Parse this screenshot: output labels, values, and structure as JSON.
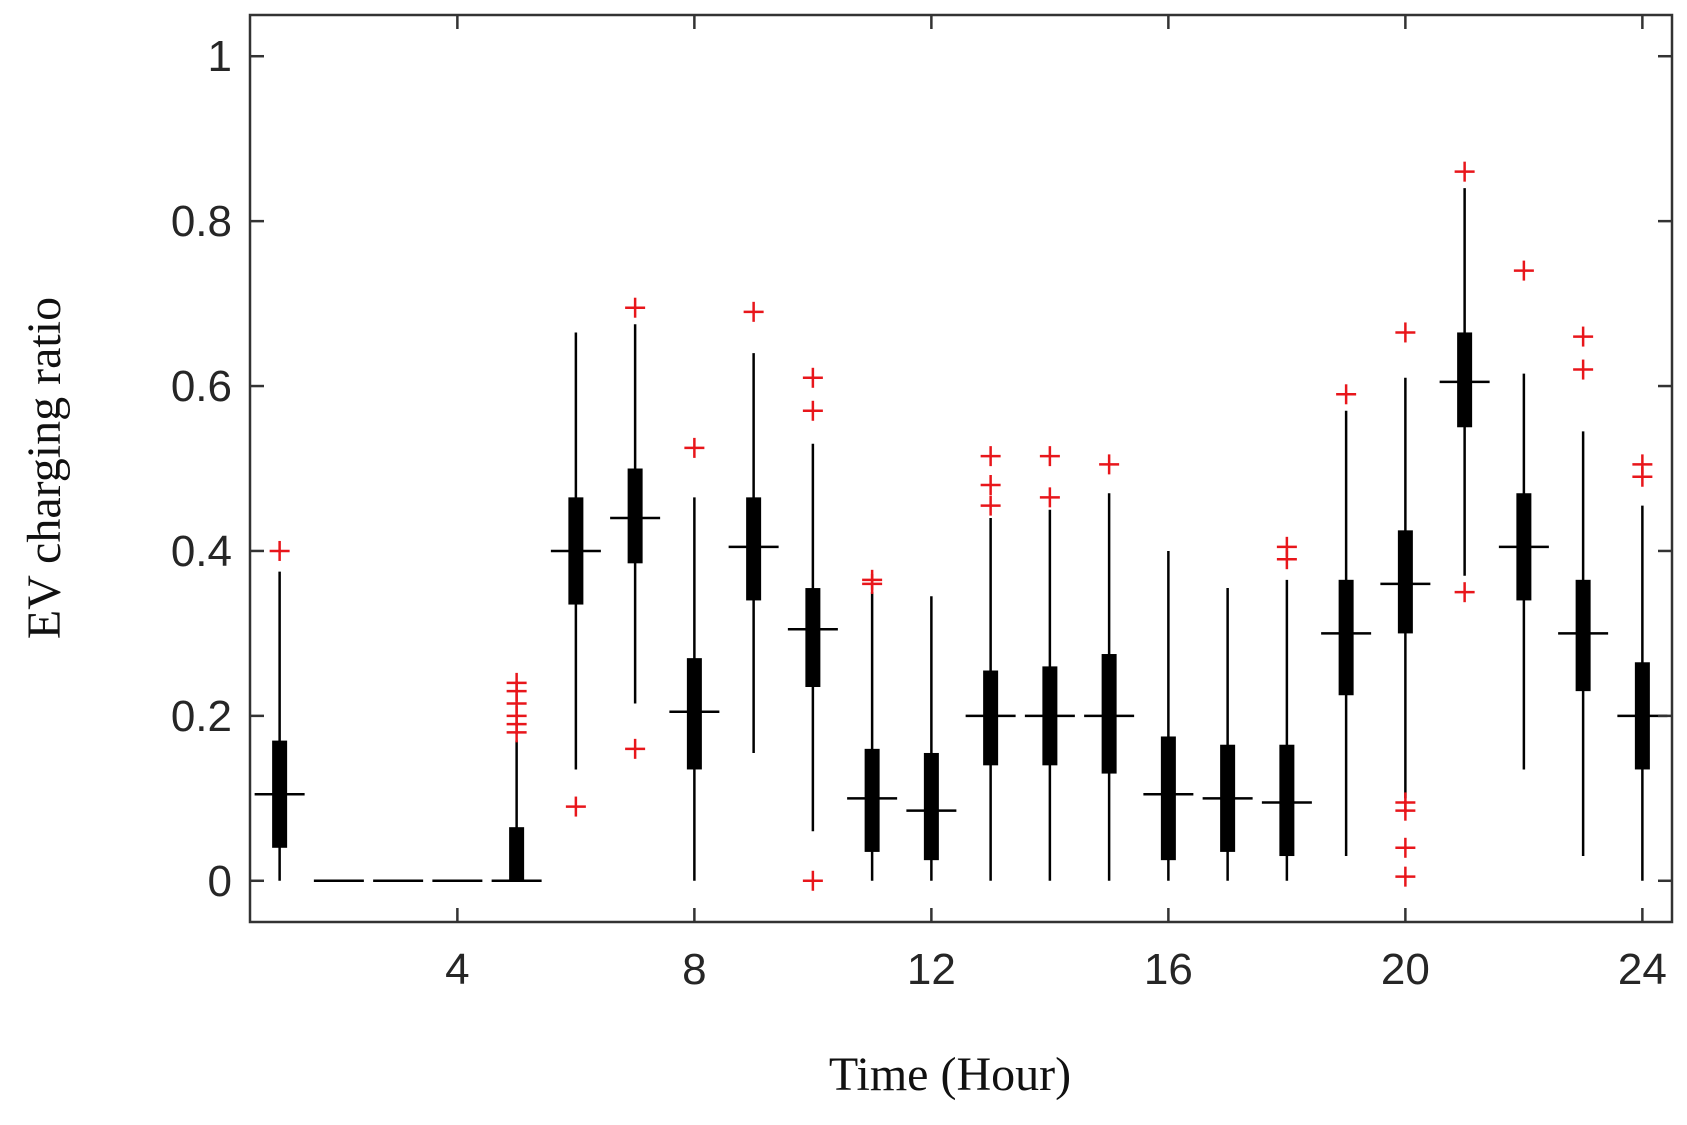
{
  "chart_data": {
    "type": "box",
    "xlabel": "Time (Hour)",
    "ylabel": "EV charging ratio",
    "xlim": [
      0.5,
      24.5
    ],
    "ylim": [
      -0.05,
      1.05
    ],
    "xticks": [
      4,
      8,
      12,
      16,
      20,
      24
    ],
    "yticks": [
      0,
      0.2,
      0.4,
      0.6,
      0.8,
      1
    ],
    "ytick_labels": [
      "0",
      "0.2",
      "0.4",
      "0.6",
      "0.8",
      "1"
    ],
    "grid": false,
    "outlier_color": "#e8161b",
    "box_color": "#000000",
    "boxes": [
      {
        "hour": 1,
        "min": 0.0,
        "q1": 0.04,
        "median": 0.105,
        "q3": 0.17,
        "max": 0.375,
        "outliers": [
          0.4
        ]
      },
      {
        "hour": 2,
        "min": 0.0,
        "q1": 0.0,
        "median": 0.0,
        "q3": 0.0,
        "max": 0.0,
        "outliers": []
      },
      {
        "hour": 3,
        "min": 0.0,
        "q1": 0.0,
        "median": 0.0,
        "q3": 0.0,
        "max": 0.0,
        "outliers": []
      },
      {
        "hour": 4,
        "min": 0.0,
        "q1": 0.0,
        "median": 0.0,
        "q3": 0.0,
        "max": 0.0,
        "outliers": []
      },
      {
        "hour": 5,
        "min": 0.0,
        "q1": 0.0,
        "median": 0.0,
        "q3": 0.065,
        "max": 0.17,
        "outliers": [
          0.18,
          0.19,
          0.2,
          0.215,
          0.23,
          0.24
        ]
      },
      {
        "hour": 6,
        "min": 0.135,
        "q1": 0.335,
        "median": 0.4,
        "q3": 0.465,
        "max": 0.665,
        "outliers": [
          0.09
        ]
      },
      {
        "hour": 7,
        "min": 0.215,
        "q1": 0.385,
        "median": 0.44,
        "q3": 0.5,
        "max": 0.675,
        "outliers": [
          0.16,
          0.695
        ]
      },
      {
        "hour": 8,
        "min": 0.0,
        "q1": 0.135,
        "median": 0.205,
        "q3": 0.27,
        "max": 0.465,
        "outliers": [
          0.525
        ]
      },
      {
        "hour": 9,
        "min": 0.155,
        "q1": 0.34,
        "median": 0.405,
        "q3": 0.465,
        "max": 0.64,
        "outliers": [
          0.69
        ]
      },
      {
        "hour": 10,
        "min": 0.06,
        "q1": 0.235,
        "median": 0.305,
        "q3": 0.355,
        "max": 0.53,
        "outliers": [
          0.0,
          0.57,
          0.61
        ]
      },
      {
        "hour": 11,
        "min": 0.0,
        "q1": 0.035,
        "median": 0.1,
        "q3": 0.16,
        "max": 0.35,
        "outliers": [
          0.36,
          0.365
        ]
      },
      {
        "hour": 12,
        "min": 0.0,
        "q1": 0.025,
        "median": 0.085,
        "q3": 0.155,
        "max": 0.345,
        "outliers": []
      },
      {
        "hour": 13,
        "min": 0.0,
        "q1": 0.14,
        "median": 0.2,
        "q3": 0.255,
        "max": 0.44,
        "outliers": [
          0.455,
          0.48,
          0.515
        ]
      },
      {
        "hour": 14,
        "min": 0.0,
        "q1": 0.14,
        "median": 0.2,
        "q3": 0.26,
        "max": 0.45,
        "outliers": [
          0.465,
          0.515
        ]
      },
      {
        "hour": 15,
        "min": 0.0,
        "q1": 0.13,
        "median": 0.2,
        "q3": 0.275,
        "max": 0.47,
        "outliers": [
          0.505
        ]
      },
      {
        "hour": 16,
        "min": 0.0,
        "q1": 0.025,
        "median": 0.105,
        "q3": 0.175,
        "max": 0.4,
        "outliers": []
      },
      {
        "hour": 17,
        "min": 0.0,
        "q1": 0.035,
        "median": 0.1,
        "q3": 0.165,
        "max": 0.355,
        "outliers": []
      },
      {
        "hour": 18,
        "min": 0.0,
        "q1": 0.03,
        "median": 0.095,
        "q3": 0.165,
        "max": 0.365,
        "outliers": [
          0.39,
          0.405
        ]
      },
      {
        "hour": 19,
        "min": 0.03,
        "q1": 0.225,
        "median": 0.3,
        "q3": 0.365,
        "max": 0.57,
        "outliers": [
          0.59
        ]
      },
      {
        "hour": 20,
        "min": 0.1,
        "q1": 0.3,
        "median": 0.36,
        "q3": 0.425,
        "max": 0.61,
        "outliers": [
          0.005,
          0.04,
          0.085,
          0.095,
          0.665
        ]
      },
      {
        "hour": 21,
        "min": 0.37,
        "q1": 0.55,
        "median": 0.605,
        "q3": 0.665,
        "max": 0.84,
        "outliers": [
          0.35,
          0.86
        ]
      },
      {
        "hour": 22,
        "min": 0.135,
        "q1": 0.34,
        "median": 0.405,
        "q3": 0.47,
        "max": 0.615,
        "outliers": [
          0.74
        ]
      },
      {
        "hour": 23,
        "min": 0.03,
        "q1": 0.23,
        "median": 0.3,
        "q3": 0.365,
        "max": 0.545,
        "outliers": [
          0.62,
          0.66
        ]
      },
      {
        "hour": 24,
        "min": 0.0,
        "q1": 0.135,
        "median": 0.2,
        "q3": 0.265,
        "max": 0.455,
        "outliers": [
          0.49,
          0.505
        ]
      }
    ]
  }
}
